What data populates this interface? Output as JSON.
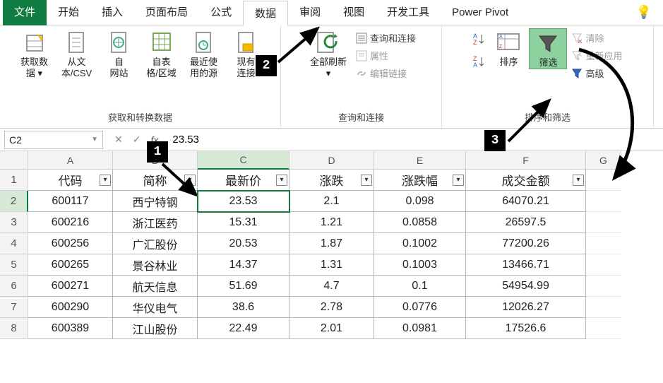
{
  "tabs": {
    "file": "文件",
    "items": [
      "开始",
      "插入",
      "页面布局",
      "公式",
      "数据",
      "审阅",
      "视图",
      "开发工具",
      "Power Pivot"
    ],
    "active": "数据"
  },
  "ribbon": {
    "group1": {
      "label": "获取和转换数据",
      "btns": [
        {
          "label": "获取数\n据 ▾"
        },
        {
          "label": "从文\n本/CSV"
        },
        {
          "label": "自\n网站"
        },
        {
          "label": "自表\n格/区域"
        },
        {
          "label": "最近使\n用的源"
        },
        {
          "label": "现有\n连接"
        }
      ]
    },
    "group2": {
      "label": "查询和连接",
      "refresh": "全部刷新\n▾",
      "small": [
        "查询和连接",
        "属性",
        "编辑链接"
      ]
    },
    "group3": {
      "label": "排序和筛选",
      "sort": "排序",
      "filter": "筛选",
      "small": [
        "清除",
        "重新应用",
        "高级"
      ]
    }
  },
  "namebox": "C2",
  "formula": "23.53",
  "columns": [
    "A",
    "B",
    "C",
    "D",
    "E",
    "F",
    "G"
  ],
  "headers": [
    "代码",
    "简称",
    "最新价",
    "涨跌",
    "涨跌幅",
    "成交金额"
  ],
  "rows": [
    [
      "600117",
      "西宁特钢",
      "23.53",
      "2.1",
      "0.098",
      "64070.21"
    ],
    [
      "600216",
      "浙江医药",
      "15.31",
      "1.21",
      "0.0858",
      "26597.5"
    ],
    [
      "600256",
      "广汇股份",
      "20.53",
      "1.87",
      "0.1002",
      "77200.26"
    ],
    [
      "600265",
      "景谷林业",
      "14.37",
      "1.31",
      "0.1003",
      "13466.71"
    ],
    [
      "600271",
      "航天信息",
      "51.69",
      "4.7",
      "0.1",
      "54954.99"
    ],
    [
      "600290",
      "华仪电气",
      "38.6",
      "2.78",
      "0.0776",
      "12026.27"
    ],
    [
      "600389",
      "江山股份",
      "22.49",
      "2.01",
      "0.0981",
      "17526.6"
    ]
  ],
  "anno": {
    "n1": "1",
    "n2": "2",
    "n3": "3"
  },
  "selected": {
    "col": "C",
    "row": 2
  }
}
